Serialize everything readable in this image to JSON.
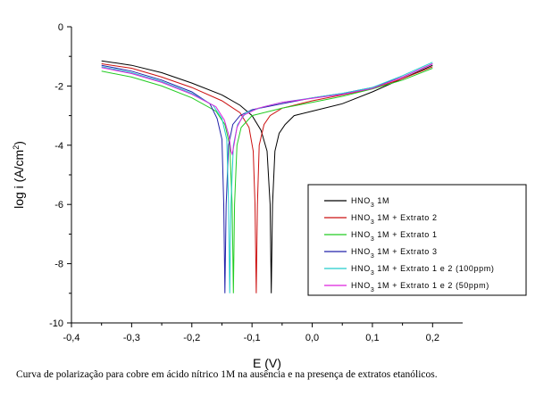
{
  "caption": "Curva de polarização para cobre em ácido nítrico 1M na ausência e na presença de extratos etanólicos.",
  "chart_data": {
    "type": "line",
    "title": "",
    "xlabel": "E (V)",
    "ylabel": "log i (A/cm²)",
    "ylabel_base": "log i (A/cm",
    "ylabel_sup": "2",
    "ylabel_close": ")",
    "xlim": [
      -0.4,
      0.25
    ],
    "ylim": [
      -10,
      0
    ],
    "xticks": [
      "-0,4",
      "-0,3",
      "-0,2",
      "-0,1",
      "0,0",
      "0,1",
      "0,2"
    ],
    "xtick_values": [
      -0.4,
      -0.3,
      -0.2,
      -0.1,
      0.0,
      0.1,
      0.2
    ],
    "yticks": [
      "0",
      "-2",
      "-4",
      "-6",
      "-8",
      "-10"
    ],
    "ytick_values": [
      0,
      -2,
      -4,
      -6,
      -8,
      -10
    ],
    "grid": false,
    "legend_position": "bottom-right",
    "series": [
      {
        "name": "HNO3 1M",
        "legend": [
          "HNO",
          "3",
          " 1M"
        ],
        "color": "#000000",
        "points": [
          [
            -0.35,
            -1.15
          ],
          [
            -0.3,
            -1.3
          ],
          [
            -0.25,
            -1.55
          ],
          [
            -0.2,
            -1.9
          ],
          [
            -0.15,
            -2.3
          ],
          [
            -0.12,
            -2.65
          ],
          [
            -0.1,
            -3.0
          ],
          [
            -0.085,
            -3.5
          ],
          [
            -0.075,
            -4.2
          ],
          [
            -0.07,
            -6.0
          ],
          [
            -0.068,
            -9.0
          ],
          [
            -0.066,
            -6.0
          ],
          [
            -0.062,
            -4.2
          ],
          [
            -0.055,
            -3.6
          ],
          [
            -0.045,
            -3.3
          ],
          [
            -0.03,
            -3.0
          ],
          [
            0.0,
            -2.85
          ],
          [
            0.05,
            -2.6
          ],
          [
            0.1,
            -2.2
          ],
          [
            0.15,
            -1.75
          ],
          [
            0.2,
            -1.3
          ]
        ]
      },
      {
        "name": "HNO3 1M + Extrato 2",
        "legend": [
          "HNO",
          "3",
          " 1M + Extrato 2"
        ],
        "color": "#cc1111",
        "points": [
          [
            -0.35,
            -1.25
          ],
          [
            -0.3,
            -1.4
          ],
          [
            -0.25,
            -1.7
          ],
          [
            -0.2,
            -2.05
          ],
          [
            -0.15,
            -2.5
          ],
          [
            -0.12,
            -2.9
          ],
          [
            -0.105,
            -3.4
          ],
          [
            -0.098,
            -4.2
          ],
          [
            -0.095,
            -6.0
          ],
          [
            -0.093,
            -9.0
          ],
          [
            -0.091,
            -6.0
          ],
          [
            -0.088,
            -4.0
          ],
          [
            -0.08,
            -3.3
          ],
          [
            -0.07,
            -3.0
          ],
          [
            -0.05,
            -2.75
          ],
          [
            0.0,
            -2.5
          ],
          [
            0.05,
            -2.3
          ],
          [
            0.1,
            -2.1
          ],
          [
            0.15,
            -1.75
          ],
          [
            0.2,
            -1.35
          ]
        ]
      },
      {
        "name": "HNO3 1M + Extrato 1",
        "legend": [
          "HNO",
          "3",
          " 1M + Extrato 1"
        ],
        "color": "#22cc22",
        "points": [
          [
            -0.35,
            -1.5
          ],
          [
            -0.3,
            -1.7
          ],
          [
            -0.25,
            -2.0
          ],
          [
            -0.2,
            -2.4
          ],
          [
            -0.16,
            -2.85
          ],
          [
            -0.145,
            -3.3
          ],
          [
            -0.137,
            -4.0
          ],
          [
            -0.133,
            -6.0
          ],
          [
            -0.131,
            -9.0
          ],
          [
            -0.129,
            -6.0
          ],
          [
            -0.125,
            -4.0
          ],
          [
            -0.118,
            -3.4
          ],
          [
            -0.1,
            -3.0
          ],
          [
            -0.05,
            -2.75
          ],
          [
            0.0,
            -2.55
          ],
          [
            0.05,
            -2.35
          ],
          [
            0.1,
            -2.1
          ],
          [
            0.15,
            -1.8
          ],
          [
            0.2,
            -1.4
          ]
        ]
      },
      {
        "name": "HNO3 1M + Extrato 3",
        "legend": [
          "HNO",
          "3",
          " 1M + Extrato 3"
        ],
        "color": "#2222aa",
        "points": [
          [
            -0.35,
            -1.3
          ],
          [
            -0.3,
            -1.5
          ],
          [
            -0.25,
            -1.8
          ],
          [
            -0.2,
            -2.2
          ],
          [
            -0.17,
            -2.6
          ],
          [
            -0.158,
            -3.1
          ],
          [
            -0.15,
            -3.8
          ],
          [
            -0.147,
            -6.0
          ],
          [
            -0.145,
            -9.0
          ],
          [
            -0.143,
            -6.0
          ],
          [
            -0.139,
            -4.0
          ],
          [
            -0.132,
            -3.3
          ],
          [
            -0.12,
            -3.0
          ],
          [
            -0.1,
            -2.8
          ],
          [
            -0.05,
            -2.6
          ],
          [
            0.0,
            -2.4
          ],
          [
            0.05,
            -2.25
          ],
          [
            0.1,
            -2.05
          ],
          [
            0.15,
            -1.7
          ],
          [
            0.2,
            -1.25
          ]
        ]
      },
      {
        "name": "HNO3 1M + Extrato 1 e 2 (100ppm)",
        "legend": [
          "HNO",
          "3",
          " 1M + Extrato 1 e 2 (100ppm)"
        ],
        "color": "#22cccc",
        "points": [
          [
            -0.35,
            -1.35
          ],
          [
            -0.3,
            -1.55
          ],
          [
            -0.25,
            -1.85
          ],
          [
            -0.2,
            -2.25
          ],
          [
            -0.165,
            -2.65
          ],
          [
            -0.15,
            -3.1
          ],
          [
            -0.142,
            -3.8
          ],
          [
            -0.139,
            -6.0
          ],
          [
            -0.137,
            -9.0
          ],
          [
            -0.135,
            -6.0
          ],
          [
            -0.131,
            -4.0
          ],
          [
            -0.124,
            -3.3
          ],
          [
            -0.11,
            -2.9
          ],
          [
            -0.08,
            -2.7
          ],
          [
            -0.05,
            -2.55
          ],
          [
            0.0,
            -2.4
          ],
          [
            0.05,
            -2.25
          ],
          [
            0.1,
            -2.05
          ],
          [
            0.15,
            -1.65
          ],
          [
            0.2,
            -1.2
          ]
        ]
      },
      {
        "name": "HNO3 1M + Extrato 1 e 2 (50ppm)",
        "legend": [
          "HNO",
          "3",
          " 1M + Extrato 1 e 2 (50ppm)"
        ],
        "color": "#dd22dd",
        "points": [
          [
            -0.35,
            -1.38
          ],
          [
            -0.3,
            -1.58
          ],
          [
            -0.25,
            -1.88
          ],
          [
            -0.2,
            -2.28
          ],
          [
            -0.16,
            -2.7
          ],
          [
            -0.146,
            -3.15
          ],
          [
            -0.138,
            -3.7
          ],
          [
            -0.135,
            -4.2
          ],
          [
            -0.133,
            -4.3
          ],
          [
            -0.13,
            -4.0
          ],
          [
            -0.125,
            -3.4
          ],
          [
            -0.115,
            -3.0
          ],
          [
            -0.09,
            -2.75
          ],
          [
            -0.05,
            -2.55
          ],
          [
            0.0,
            -2.42
          ],
          [
            0.05,
            -2.28
          ],
          [
            0.1,
            -2.08
          ],
          [
            0.15,
            -1.7
          ],
          [
            0.2,
            -1.25
          ]
        ]
      }
    ]
  }
}
